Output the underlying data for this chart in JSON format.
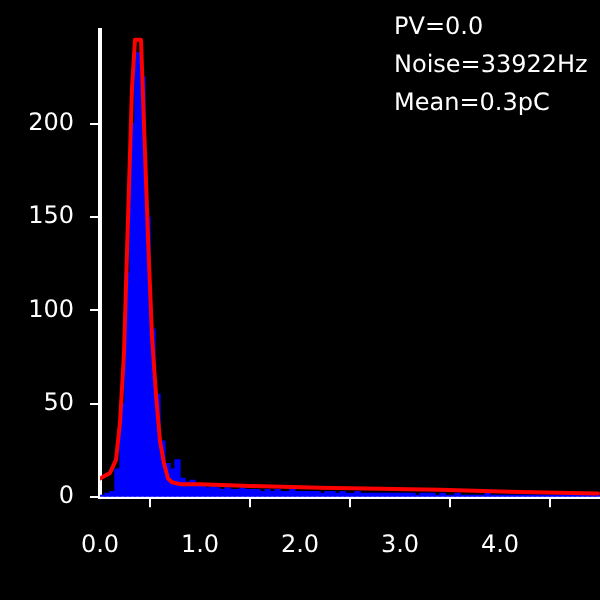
{
  "chart_data": {
    "type": "histogram",
    "bins": [
      0,
      0.05,
      0.1,
      0.15,
      0.2,
      0.25,
      0.3,
      0.35,
      0.4,
      0.45,
      0.5,
      0.55,
      0.6,
      0.65,
      0.7,
      0.75,
      0.8,
      0.85,
      0.9,
      0.95,
      1.0,
      1.05,
      1.1,
      1.15,
      1.2,
      1.25,
      1.3,
      1.35,
      1.4,
      1.45,
      1.5,
      1.55,
      1.6,
      1.65,
      1.7,
      1.75,
      1.8,
      1.85,
      1.9,
      1.95,
      2.0,
      2.05,
      2.1,
      2.15,
      2.2,
      2.25,
      2.3,
      2.35,
      2.4,
      2.45,
      2.5,
      2.55,
      2.6,
      2.65,
      2.7,
      2.75,
      2.8,
      2.85,
      2.9,
      2.95,
      3.0,
      3.05,
      3.1,
      3.15,
      3.2,
      3.25,
      3.3,
      3.35,
      3.4,
      3.45,
      3.5,
      3.55,
      3.6,
      3.65,
      3.7,
      3.75,
      3.8,
      3.85,
      3.9,
      3.95,
      4.0,
      4.05,
      4.1,
      4.15,
      4.2,
      4.25,
      4.3,
      4.35,
      4.4,
      4.45,
      4.5,
      4.55,
      4.6,
      4.65,
      4.7,
      4.75,
      4.8,
      4.85,
      4.9,
      4.95,
      5.0
    ],
    "values": [
      1,
      2,
      3,
      15,
      50,
      120,
      200,
      238,
      225,
      150,
      90,
      55,
      30,
      18,
      15,
      20,
      10,
      8,
      9,
      7,
      6,
      5,
      7,
      5,
      4,
      5,
      4,
      4,
      5,
      4,
      4,
      4,
      3,
      4,
      3,
      4,
      3,
      3,
      4,
      3,
      3,
      3,
      3,
      3,
      2,
      3,
      3,
      2,
      3,
      2,
      2,
      3,
      2,
      2,
      2,
      2,
      2,
      2,
      2,
      2,
      2,
      2,
      2,
      1,
      2,
      2,
      2,
      1,
      2,
      1,
      1,
      2,
      1,
      1,
      1,
      1,
      1,
      2,
      1,
      1,
      1,
      1,
      1,
      1,
      1,
      1,
      1,
      1,
      1,
      1,
      1,
      1,
      1,
      1,
      1,
      1,
      1,
      1,
      1,
      1
    ],
    "color": "#0000ff",
    "series": [
      {
        "type": "line",
        "color": "#ff0000",
        "x": [
          0,
          0.1,
          0.16,
          0.2,
          0.24,
          0.28,
          0.32,
          0.35,
          0.41,
          0.44,
          0.48,
          0.52,
          0.56,
          0.6,
          0.64,
          0.68,
          0.72,
          0.8,
          1.0,
          1.5,
          2.2,
          3.4,
          4.0,
          4.98
        ],
        "values": [
          10,
          13,
          20,
          40,
          77,
          149,
          219,
          245,
          245,
          200,
          139,
          86,
          55,
          30,
          18,
          10,
          8,
          7,
          7,
          6,
          5,
          4,
          3,
          2
        ]
      }
    ],
    "xlim": [
      0,
      5
    ],
    "xticks": [
      {
        "value": 0,
        "label": "0.0"
      },
      {
        "value": 1,
        "label": "1.0"
      },
      {
        "value": 2,
        "label": "2.0"
      },
      {
        "value": 3,
        "label": "3.0"
      },
      {
        "value": 4,
        "label": "4.0"
      }
    ],
    "ylim": [
      0,
      250
    ],
    "yticks": [
      0,
      50,
      100,
      150,
      200
    ],
    "annotations": [
      "PV=0.0",
      "Noise=33922Hz",
      "Mean=0.3pC"
    ],
    "grid": false,
    "legend": false,
    "marker": "none",
    "line_style": "solid"
  }
}
